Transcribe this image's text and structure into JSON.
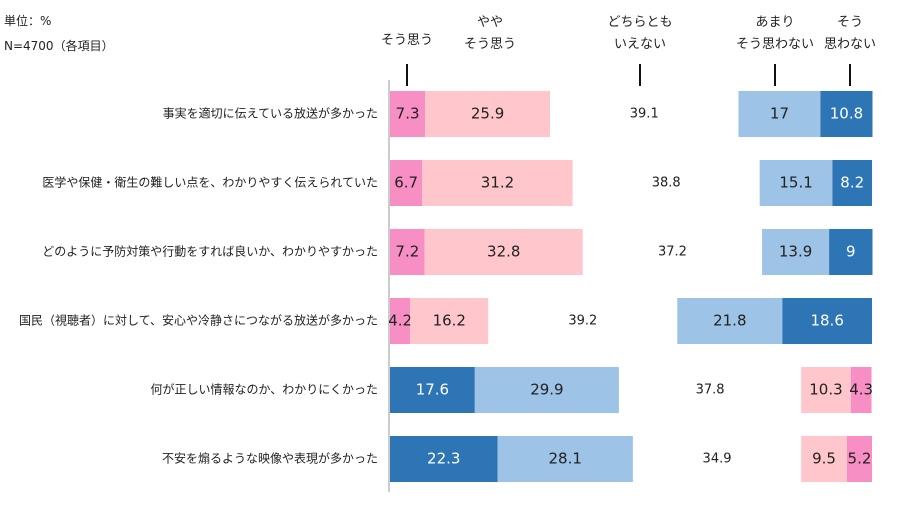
{
  "chart_data": {
    "type": "stacked-bar-horizontal",
    "unit_label": "単位：%",
    "sample_label": "N=4700（各項目）",
    "categories": [
      "事実を適切に伝えている放送が多かった",
      "医学や保健・衛生の難しい点を、わかりやすく伝えられていた",
      "どのように予防対策や行動をすれば良いか、わかりやすかった",
      "国民（視聴者）に対して、安心や冷静さにつながる放送が多かった",
      "何が正しい情報なのか、わかりにくかった",
      "不安を煽るような映像や表現が多かった"
    ],
    "series": [
      {
        "name": "そう思う",
        "values": [
          7.3,
          6.7,
          7.2,
          4.2,
          17.6,
          22.3
        ],
        "colors": [
          "#f78fc4",
          "#f78fc4",
          "#f78fc4",
          "#f78fc4",
          "#2e75b6",
          "#2e75b6"
        ]
      },
      {
        "name": "やや\nそう思う",
        "values": [
          25.9,
          31.2,
          32.8,
          16.2,
          29.9,
          28.1
        ],
        "colors": [
          "#ffc7cc",
          "#ffc7cc",
          "#ffc7cc",
          "#ffc7cc",
          "#9dc3e6",
          "#9dc3e6"
        ]
      },
      {
        "name": "どちらとも\nいえない",
        "values": [
          39.1,
          38.8,
          37.2,
          39.2,
          37.8,
          34.9
        ],
        "colors": [
          "#ffffff",
          "#ffffff",
          "#ffffff",
          "#ffffff",
          "#ffffff",
          "#ffffff"
        ]
      },
      {
        "name": "あまり\nそう思わない",
        "values": [
          17.0,
          15.1,
          13.9,
          21.8,
          10.3,
          9.5
        ],
        "colors": [
          "#9dc3e6",
          "#9dc3e6",
          "#9dc3e6",
          "#9dc3e6",
          "#ffc7cc",
          "#ffc7cc"
        ]
      },
      {
        "name": "そう\n思わない",
        "values": [
          10.8,
          8.2,
          9.0,
          18.6,
          4.3,
          5.2
        ],
        "colors": [
          "#2e75b6",
          "#2e75b6",
          "#2e75b6",
          "#2e75b6",
          "#f78fc4",
          "#f78fc4"
        ]
      }
    ],
    "xlim": [
      0,
      100
    ]
  }
}
